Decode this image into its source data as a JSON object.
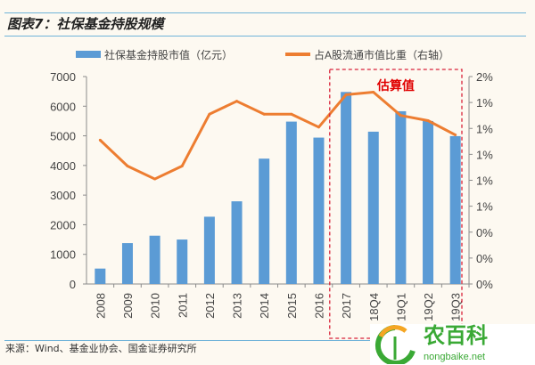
{
  "header": {
    "title": "图表7：社保基金持股规模"
  },
  "footer": {
    "source": "来源：Wind、基金业协会、国金证券研究所"
  },
  "watermark": {
    "name": "农百科",
    "url": "nongbaike.net"
  },
  "chart_data": {
    "type": "bar+line",
    "title": "社保基金持股规模",
    "categories": [
      "2008",
      "2009",
      "2010",
      "2011",
      "2012",
      "2013",
      "2014",
      "2015",
      "2016",
      "2017",
      "18Q4",
      "19Q1",
      "19Q2",
      "19Q3"
    ],
    "series": [
      {
        "name": "社保基金持股市值（亿元）",
        "type": "bar",
        "axis": "left",
        "color": "#5b9bd5",
        "values": [
          520,
          1380,
          1630,
          1500,
          2270,
          2790,
          4230,
          5480,
          4940,
          6480,
          5140,
          5830,
          5500,
          4990
        ]
      },
      {
        "name": "占A股流通市值比重（右轴）",
        "type": "line",
        "axis": "right",
        "color": "#ed7d31",
        "values": [
          1.11,
          0.91,
          0.81,
          0.91,
          1.31,
          1.41,
          1.31,
          1.31,
          1.21,
          1.46,
          1.48,
          1.3,
          1.26,
          1.15
        ]
      }
    ],
    "left_axis": {
      "ylim": [
        0,
        7000
      ],
      "ticks": [
        "0",
        "1000",
        "2000",
        "3000",
        "4000",
        "5000",
        "6000",
        "7000"
      ]
    },
    "right_axis": {
      "ylim": [
        0,
        1.6
      ],
      "ticks": [
        "0%",
        "0%",
        "0%",
        "1%",
        "1%",
        "1%",
        "1%",
        "1%",
        "2%"
      ]
    },
    "annotation": {
      "text": "估算值",
      "color": "#e00000",
      "range": [
        "2017",
        "19Q3"
      ]
    },
    "legend": "top"
  }
}
